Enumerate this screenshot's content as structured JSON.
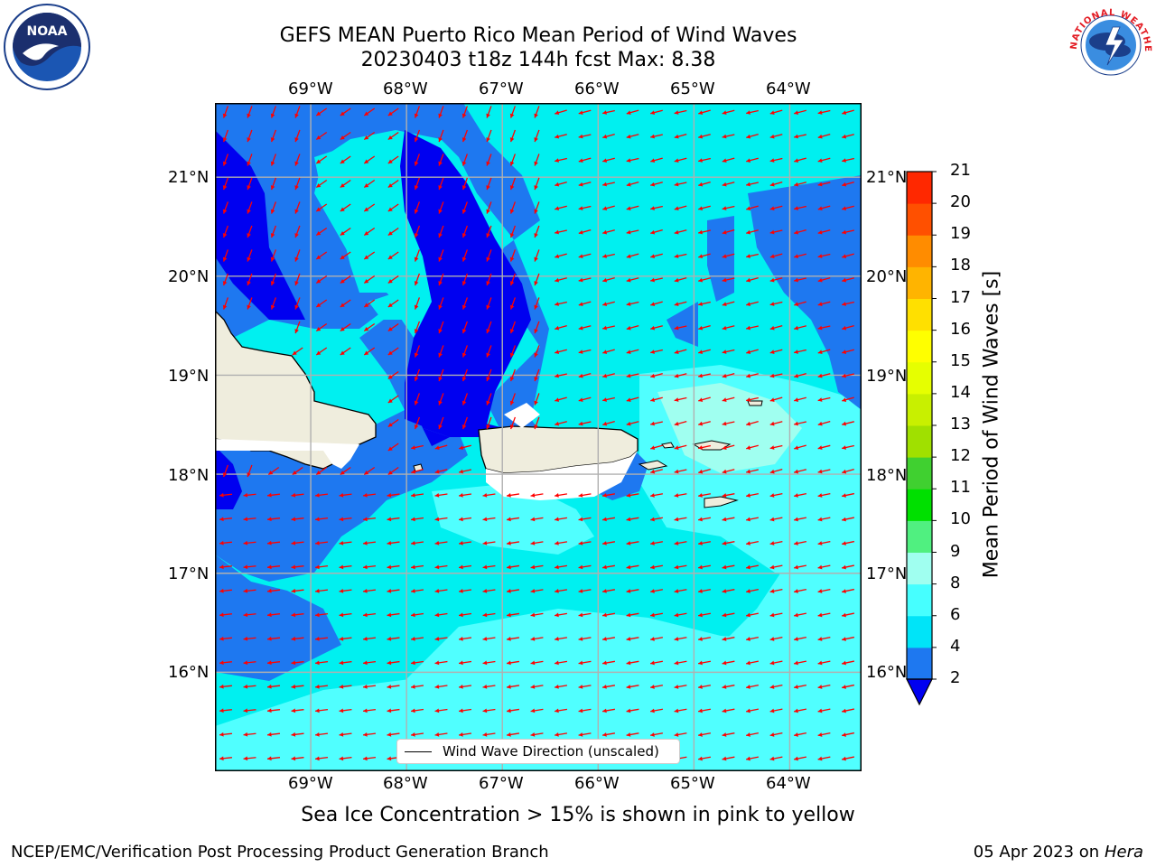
{
  "header": {
    "title_line1": "GEFS MEAN Puerto Rico Mean Period of Wind Waves",
    "title_line2": "20230403 t18z 144h fcst   Max: 8.38"
  },
  "logos": {
    "left": "noaa-logo",
    "right": "national-weather-service-logo",
    "right_text": "NATIONAL WEATHER SERVICE"
  },
  "map": {
    "lon_labels": [
      "69°W",
      "68°W",
      "67°W",
      "66°W",
      "65°W",
      "64°W"
    ],
    "lat_labels": [
      "21°N",
      "20°N",
      "19°N",
      "18°N",
      "17°N",
      "16°N"
    ],
    "lon_values": [
      -69,
      -68,
      -67,
      -66,
      -65,
      -64
    ],
    "lat_values": [
      21,
      20,
      19,
      18,
      17,
      16
    ],
    "extent": {
      "lon_min": -70,
      "lon_max": -63.25,
      "lat_min": 15,
      "lat_max": 21.75
    },
    "land_color": "#efeddd",
    "ocean_colors": {
      "2-4": "#1e78f0",
      "4-6": "#00f0f0",
      "6-8": "#50ffff",
      "8-9": "#a0fff0",
      "below-2": "#0000f0"
    },
    "arrow_color": "#ff0000"
  },
  "legend": {
    "label": "Wind Wave Direction (unscaled)"
  },
  "colorbar": {
    "title": "Mean Period of Wind Waves [s]",
    "ticks": [
      "2",
      "4",
      "6",
      "8",
      "9",
      "10",
      "11",
      "12",
      "13",
      "14",
      "15",
      "16",
      "17",
      "18",
      "19",
      "20",
      "21"
    ],
    "colors": [
      "#1e78f0",
      "#00e4f8",
      "#46ffff",
      "#a0fff0",
      "#50f080",
      "#00e000",
      "#40d030",
      "#a0e000",
      "#c8f000",
      "#e6ff00",
      "#ffff00",
      "#ffe000",
      "#ffb400",
      "#ff8c00",
      "#ff5000",
      "#ff2800",
      "#ff0000"
    ],
    "extend_color": "#0000f0"
  },
  "footer": {
    "sea_ice_note": "Sea Ice Concentration > 15% is shown in pink to yellow",
    "branch": "NCEP/EMC/Verification Post Processing Product Generation Branch",
    "date": "05 Apr 2023 on",
    "host": "Hera"
  }
}
